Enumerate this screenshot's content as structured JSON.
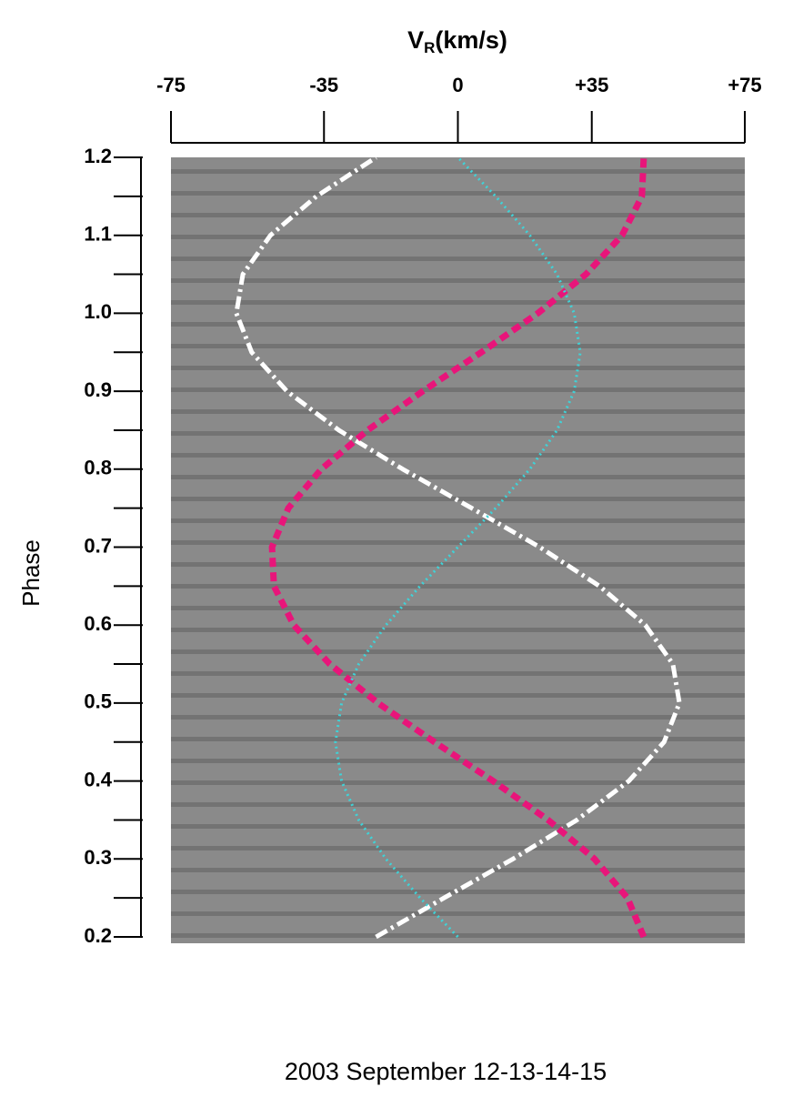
{
  "chart_data": {
    "type": "line",
    "xlabel": {
      "main": "V",
      "sub": "R",
      "rest": "(km/s)"
    },
    "ylabel": "Phase",
    "caption": "2003 September 12-13-14-15",
    "xlim": [
      -75,
      75
    ],
    "xticks": [
      -75,
      -35,
      0,
      {
        "value": 35,
        "label": "+35"
      },
      {
        "value": 75,
        "label": "+75"
      }
    ],
    "ylim": [
      0.2,
      1.2
    ],
    "yticks": [
      0.2,
      0.3,
      0.4,
      0.5,
      0.6,
      0.7,
      0.8,
      0.9,
      {
        "value": 1,
        "label": "1.0"
      },
      1.1,
      1.2
    ],
    "yticks_minor": [
      0.25,
      0.35,
      0.45,
      0.55,
      0.65,
      0.75,
      0.85,
      0.95,
      1.05,
      1.15
    ],
    "y": [
      0.2,
      0.25,
      0.3,
      0.35,
      0.4,
      0.45,
      0.5,
      0.55,
      0.6,
      0.65,
      0.7,
      0.75,
      0.8,
      0.85,
      0.9,
      0.95,
      1.0,
      1.05,
      1.1,
      1.15,
      1.2
    ],
    "series": [
      {
        "color": "#ffffff",
        "style": "dash-dot",
        "values": [
          -21.4,
          -3.6,
          14.4,
          31.1,
          44.7,
          53.9,
          57.9,
          56.2,
          49.0,
          37.0,
          21.4,
          3.6,
          -14.4,
          -31.1,
          -44.7,
          -53.9,
          -57.9,
          -56.2,
          -49.0,
          -37.0,
          -21.4
        ]
      },
      {
        "color": "#e8157a",
        "style": "dashed",
        "values": [
          48.6,
          44.3,
          35.7,
          23.6,
          9.2,
          -6.1,
          -20.9,
          -33.5,
          -42.9,
          -48.1,
          -48.6,
          -44.3,
          -35.7,
          -23.6,
          -9.2,
          6.1,
          20.9,
          33.5,
          42.9,
          48.1,
          48.6
        ]
      },
      {
        "color": "#3fd3d8",
        "style": "dotted",
        "values": [
          0,
          -9.9,
          -18.8,
          -25.9,
          -30.4,
          -32,
          -30.4,
          -25.9,
          -18.8,
          -9.9,
          0,
          9.9,
          18.8,
          25.9,
          30.4,
          32,
          30.4,
          25.9,
          18.8,
          9.9,
          0
        ]
      }
    ]
  }
}
